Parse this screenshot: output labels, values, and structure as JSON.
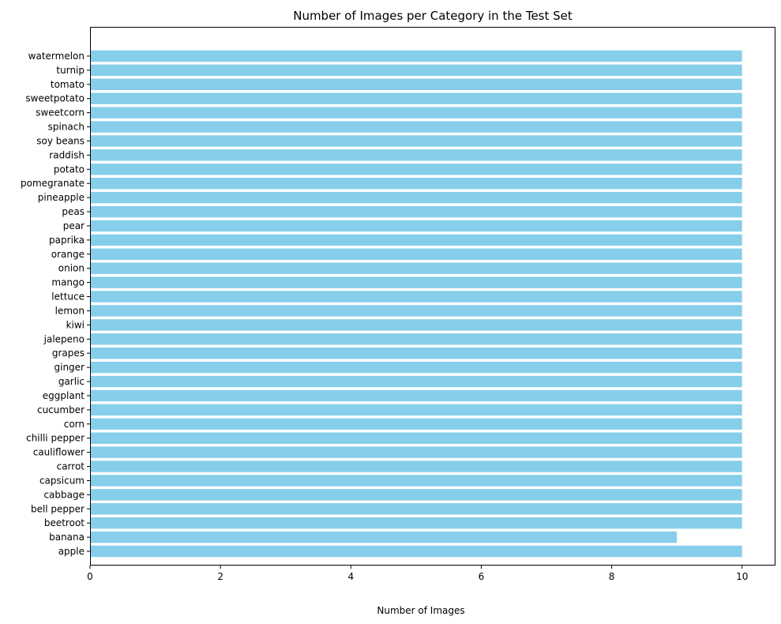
{
  "chart_data": {
    "type": "bar",
    "orientation": "horizontal",
    "title": "Number of Images per Category in the Test Set",
    "xlabel": "Number of Images",
    "ylabel": "",
    "xlim": [
      0,
      10.5
    ],
    "xticks": [
      0,
      2,
      4,
      6,
      8,
      10
    ],
    "grid": false,
    "bar_color": "#87CEEB",
    "categories": [
      "apple",
      "banana",
      "beetroot",
      "bell pepper",
      "cabbage",
      "capsicum",
      "carrot",
      "cauliflower",
      "chilli pepper",
      "corn",
      "cucumber",
      "eggplant",
      "garlic",
      "ginger",
      "grapes",
      "jalepeno",
      "kiwi",
      "lemon",
      "lettuce",
      "mango",
      "onion",
      "orange",
      "paprika",
      "pear",
      "peas",
      "pineapple",
      "pomegranate",
      "potato",
      "raddish",
      "soy beans",
      "spinach",
      "sweetcorn",
      "sweetpotato",
      "tomato",
      "turnip",
      "watermelon"
    ],
    "values": [
      10,
      9,
      10,
      10,
      10,
      10,
      10,
      10,
      10,
      10,
      10,
      10,
      10,
      10,
      10,
      10,
      10,
      10,
      10,
      10,
      10,
      10,
      10,
      10,
      10,
      10,
      10,
      10,
      10,
      10,
      10,
      10,
      10,
      10,
      10,
      10
    ]
  }
}
